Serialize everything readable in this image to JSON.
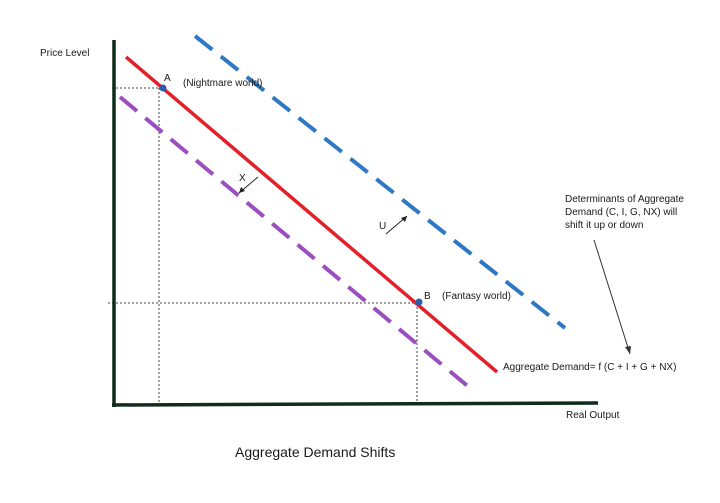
{
  "diagram": {
    "title": "Aggregate Demand Shifts",
    "y_axis_label": "Price Level",
    "x_axis_label": "Real Output",
    "point_a_letter": "A",
    "point_a_note": "(Nightmare world)",
    "point_b_letter": "B",
    "point_b_note": "(Fantasy world)",
    "shift_left_label": "X",
    "shift_right_label": "U",
    "curve_label": "Aggregate Demand= f (C + I + G + NX)",
    "note_lines": [
      "Determinants of Aggregate",
      "Demand (C, I, G, NX) will",
      "shift it up or down"
    ]
  },
  "colors": {
    "axis": "#0f2b1a",
    "original_curve": "#e3202a",
    "shift_right_curve": "#2f78c4",
    "shift_left_curve": "#9b4fbf",
    "point": "#2a5ea8"
  }
}
